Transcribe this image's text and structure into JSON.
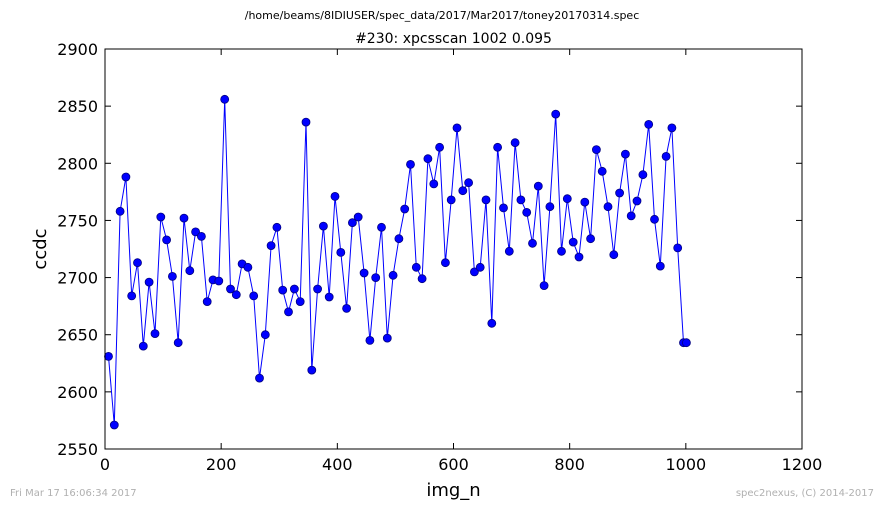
{
  "figure": {
    "suptitle": "/home/beams/8IDIUSER/spec_data/2017/Mar2017/toney20170314.spec",
    "footer_left": "Fri Mar 17 16:06:34 2017",
    "footer_right": "spec2nexus, (C) 2014-2017"
  },
  "chart_data": {
    "type": "line",
    "title": "#230: xpcsscan 1002 0.095",
    "xlabel": "img_n",
    "ylabel": "ccdc",
    "xlim": [
      0,
      1200
    ],
    "ylim": [
      2550,
      2900
    ],
    "xticks": [
      0,
      200,
      400,
      600,
      800,
      1000,
      1200
    ],
    "yticks": [
      2550,
      2600,
      2650,
      2700,
      2750,
      2800,
      2850,
      2900
    ],
    "grid": false,
    "legend": null,
    "colors": {
      "line": "#0000ff",
      "marker": "#0000ff",
      "marker_edge": "#000080"
    },
    "series": [
      {
        "x": [
          6,
          16,
          26,
          36,
          46,
          56,
          66,
          76,
          86,
          96,
          106,
          116,
          126,
          136,
          146,
          156,
          166,
          176,
          186,
          196,
          206,
          216,
          226,
          236,
          246,
          256,
          266,
          276,
          286,
          296,
          306,
          316,
          326,
          336,
          346,
          356,
          366,
          376,
          386,
          396,
          406,
          416,
          426,
          436,
          446,
          456,
          466,
          476,
          486,
          496,
          506,
          516,
          526,
          536,
          546,
          556,
          566,
          576,
          586,
          596,
          606,
          616,
          626,
          636,
          646,
          656,
          666,
          676,
          686,
          696,
          706,
          716,
          726,
          736,
          746,
          756,
          766,
          776,
          786,
          796,
          806,
          816,
          826,
          836,
          846,
          856,
          866,
          876,
          886,
          896,
          906,
          916,
          926,
          936,
          946,
          956,
          966,
          976,
          986,
          996,
          1001
        ],
        "y": [
          2631,
          2571,
          2758,
          2788,
          2684,
          2713,
          2640,
          2696,
          2651,
          2753,
          2733,
          2701,
          2643,
          2752,
          2706,
          2740,
          2736,
          2679,
          2698,
          2697,
          2856,
          2690,
          2685,
          2712,
          2709,
          2684,
          2612,
          2650,
          2728,
          2744,
          2689,
          2670,
          2690,
          2679,
          2836,
          2619,
          2690,
          2745,
          2683,
          2771,
          2722,
          2673,
          2748,
          2753,
          2704,
          2645,
          2700,
          2744,
          2647,
          2702,
          2734,
          2760,
          2799,
          2709,
          2699,
          2804,
          2782,
          2814,
          2713,
          2768,
          2831,
          2776,
          2783,
          2705,
          2709,
          2768,
          2660,
          2814,
          2761,
          2723,
          2818,
          2768,
          2757,
          2730,
          2780,
          2693,
          2762,
          2843,
          2723,
          2769,
          2731,
          2718,
          2766,
          2734,
          2812,
          2793,
          2762,
          2720,
          2774,
          2808,
          2754,
          2767,
          2790,
          2834,
          2751,
          2710,
          2806,
          2831,
          2726,
          2643,
          2643
        ]
      }
    ]
  }
}
